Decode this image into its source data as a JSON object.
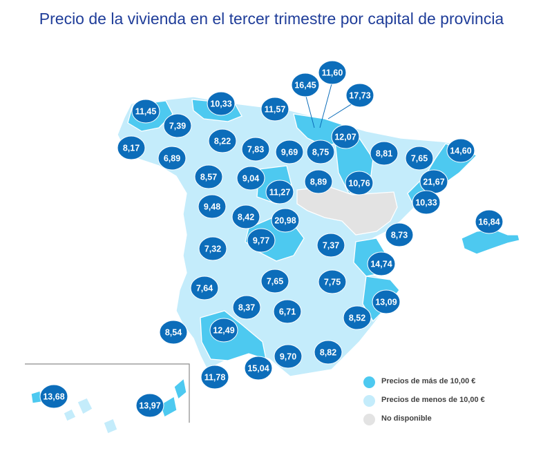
{
  "title": "Precio de la vivienda en el tercer trimestre por capital de provincia",
  "colors": {
    "above_10": "#4dc9f0",
    "below_10": "#c4ecfb",
    "not_available": "#e3e3e3",
    "bubble": "#0c6dba",
    "title": "#1f3d99"
  },
  "legend": [
    {
      "label": "Precios de más de 10,00 €",
      "color_key": "above_10"
    },
    {
      "label": "Precios de menos de 10,00 €",
      "color_key": "below_10"
    },
    {
      "label": "No disponible",
      "color_key": "not_available"
    }
  ],
  "prices": [
    "11,45",
    "10,33",
    "11,57",
    "16,45",
    "11,60",
    "17,73",
    "7,39",
    "8,17",
    "8,22",
    "7,83",
    "9,69",
    "8,75",
    "12,07",
    "8,81",
    "7,65",
    "14,60",
    "6,89",
    "8,57",
    "9,04",
    "8,89",
    "10,76",
    "21,67",
    "11,27",
    "9,48",
    "8,42",
    "20,98",
    "10,33",
    "16,84",
    "8,73",
    "9,77",
    "7,32",
    "7,37",
    "14,74",
    "7,64",
    "7,65",
    "7,75",
    "13,09",
    "8,37",
    "6,71",
    "8,52",
    "8,54",
    "12,49",
    "9,70",
    "8,82",
    "11,78",
    "15,04",
    "13,68",
    "13,97"
  ]
}
